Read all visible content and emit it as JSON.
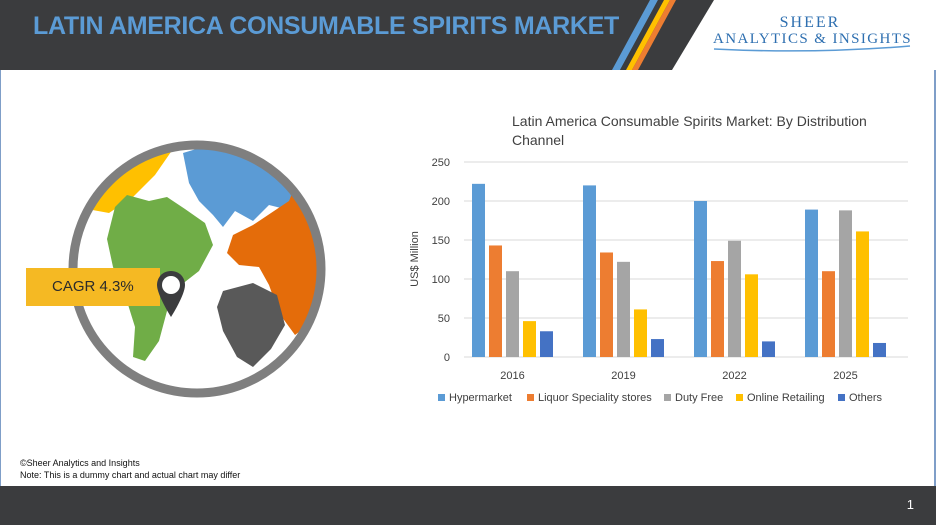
{
  "header": {
    "title": "LATIN AMERICA CONSUMABLE SPIRITS MARKET"
  },
  "brand": {
    "line1": "SHEER",
    "line2": "ANALYTICS & INSIGHTS"
  },
  "colors": {
    "header_bg": "#3b3c3e",
    "title": "#5b9bd5",
    "Hypermarket": "#5b9bd5",
    "Liquor Speciality stores": "#ed7d31",
    "Duty Free": "#a5a5a5",
    "Online Retailing": "#ffc000",
    "Others": "#4472c4"
  },
  "callout": {
    "cagr": "CAGR 4.3%"
  },
  "footer": {
    "copyright": "©Sheer Analytics and Insights",
    "note": "Note: This is a dummy chart and actual chart may differ",
    "page": "1"
  },
  "chart_data": {
    "type": "bar",
    "title": "Latin America Consumable Spirits Market: By Distribution Channel",
    "title_lines": [
      "Latin America Consumable Spirits Market: By Distribution",
      "Channel"
    ],
    "ylabel": "US$ Million",
    "xlabel": "",
    "ylim": [
      0,
      250
    ],
    "yticks": [
      0,
      50,
      100,
      150,
      200,
      250
    ],
    "grid": true,
    "legend": "bottom",
    "categories": [
      "2016",
      "2019",
      "2022",
      "2025"
    ],
    "series": [
      {
        "name": "Hypermarket",
        "values": [
          222,
          220,
          200,
          189
        ]
      },
      {
        "name": "Liquor Speciality stores",
        "values": [
          143,
          134,
          123,
          110
        ]
      },
      {
        "name": "Duty Free",
        "values": [
          110,
          122,
          149,
          188
        ]
      },
      {
        "name": "Online Retailing",
        "values": [
          46,
          61,
          106,
          161
        ]
      },
      {
        "name": "Others",
        "values": [
          33,
          23,
          20,
          18
        ]
      }
    ]
  }
}
